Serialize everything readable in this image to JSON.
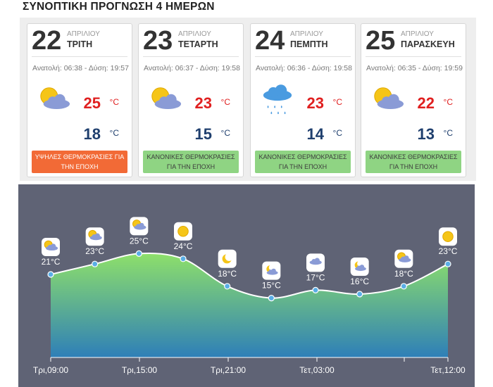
{
  "page_title": "ΣΥΝΟΠΤΙΚΗ ΠΡΟΓΝΩΣΗ 4 ΗΜΕΡΩΝ",
  "days": [
    {
      "day": "22",
      "month": "ΑΠΡΙΛΙΟΥ",
      "weekday": "ΤΡΙΤΗ",
      "sun": "Ανατολή: 06:38 - Δύση: 19:57",
      "icon": "partly-cloudy-icon",
      "tmax": "25",
      "tmin": "18",
      "unit": "°C",
      "badge": "ΥΨΗΛΕΣ ΘΕΡΜΟΚΡΑΣΙΕΣ ΓΙΑ ΤΗΝ ΕΠΟΧΗ",
      "badge_color": "#f26a36"
    },
    {
      "day": "23",
      "month": "ΑΠΡΙΛΙΟΥ",
      "weekday": "ΤΕΤΑΡΤΗ",
      "sun": "Ανατολή: 06:37 - Δύση: 19:58",
      "icon": "partly-cloudy-icon",
      "tmax": "23",
      "tmin": "15",
      "unit": "°C",
      "badge": "ΚΑΝΟΝΙΚΕΣ ΘΕΡΜΟΚΡΑΣΙΕΣ ΓΙΑ ΤΗΝ ΕΠΟΧΗ",
      "badge_color": "#8fd483"
    },
    {
      "day": "24",
      "month": "ΑΠΡΙΛΙΟΥ",
      "weekday": "ΠΕΜΠΤΗ",
      "sun": "Ανατολή: 06:36 - Δύση: 19:58",
      "icon": "rain-icon",
      "tmax": "23",
      "tmin": "14",
      "unit": "°C",
      "badge": "ΚΑΝΟΝΙΚΕΣ ΘΕΡΜΟΚΡΑΣΙΕΣ ΓΙΑ ΤΗΝ ΕΠΟΧΗ",
      "badge_color": "#8fd483"
    },
    {
      "day": "25",
      "month": "ΑΠΡΙΛΙΟΥ",
      "weekday": "ΠΑΡΑΣΚΕΥΗ",
      "sun": "Ανατολή: 06:35 - Δύση: 19:59",
      "icon": "partly-cloudy-icon",
      "tmax": "22",
      "tmin": "13",
      "unit": "°C",
      "badge": "ΚΑΝΟΝΙΚΕΣ ΘΕΡΜΟΚΡΑΣΙΕΣ ΓΙΑ ΤΗΝ ΕΠΟΧΗ",
      "badge_color": "#8fd483"
    }
  ],
  "chart_data": {
    "type": "area",
    "points": [
      {
        "temp": 21,
        "label": "21°C",
        "icon": "partly-cloudy-icon"
      },
      {
        "temp": 23,
        "label": "23°C",
        "icon": "partly-cloudy-icon"
      },
      {
        "temp": 25,
        "label": "25°C",
        "icon": "partly-cloudy-icon"
      },
      {
        "temp": 24,
        "label": "24°C",
        "icon": "sun-icon"
      },
      {
        "temp": 18,
        "label": "18°C",
        "icon": "moon-icon"
      },
      {
        "temp": 15,
        "label": "15°C",
        "icon": "moon-cloud-icon"
      },
      {
        "temp": 17,
        "label": "17°C",
        "icon": "cloud-icon"
      },
      {
        "temp": 16,
        "label": "16°C",
        "icon": "moon-cloud-icon"
      },
      {
        "temp": 18,
        "label": "18°C",
        "icon": "partly-cloudy-icon"
      },
      {
        "temp": 23,
        "label": "23°C",
        "icon": "sun-icon"
      }
    ],
    "x_ticks": [
      "Τρι,09:00",
      "Τρι,15:00",
      "Τρι,21:00",
      "Τετ,03:00",
      "Τετ,12:00"
    ],
    "colors": {
      "background": "#5f6375",
      "top_fill": "#8ee06a",
      "bottom_fill": "#2e7fb8",
      "line": "#ffffff",
      "marker": "#5aaee6"
    }
  }
}
